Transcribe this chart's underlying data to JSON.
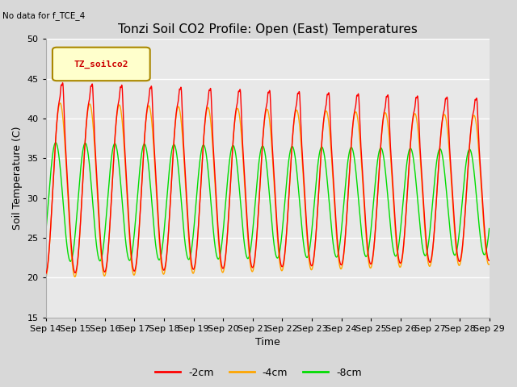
{
  "title": "Tonzi Soil CO2 Profile: Open (East) Temperatures",
  "subtitle": "No data for f_TCE_4",
  "xlabel": "Time",
  "ylabel": "Soil Temperature (C)",
  "ylim": [
    15,
    50
  ],
  "yticks": [
    15,
    20,
    25,
    30,
    35,
    40,
    45,
    50
  ],
  "x_labels": [
    "Sep 14",
    "Sep 15",
    "Sep 16",
    "Sep 17",
    "Sep 18",
    "Sep 19",
    "Sep 20",
    "Sep 21",
    "Sep 22",
    "Sep 23",
    "Sep 24",
    "Sep 25",
    "Sep 26",
    "Sep 27",
    "Sep 28",
    "Sep 29"
  ],
  "legend_label": "TZ_soilco2",
  "line_labels": [
    "-2cm",
    "-4cm",
    "-8cm"
  ],
  "line_colors": [
    "#ff0000",
    "#ffa500",
    "#00dd00"
  ],
  "bg_color": "#d8d8d8",
  "plot_bg_color": "#e8e8e8",
  "n_days": 15,
  "ppd": 288,
  "start_day": 14
}
